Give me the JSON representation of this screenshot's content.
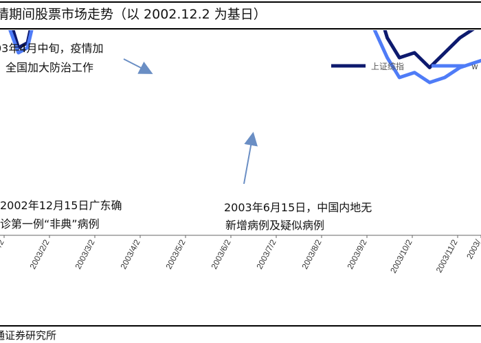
{
  "header": {
    "title": "情期间股票市场走势（以 2002.12.2 为基日）"
  },
  "footer": {
    "source": "通证券研究所"
  },
  "chart_data": {
    "type": "line",
    "title": "情期间股票市场走势（以 2002.12.2 为基日）",
    "xlabel": "",
    "ylabel": "",
    "x_ticks": [
      "/2",
      "2003/2/2",
      "2003/3/2",
      "2003/4/2",
      "2003/5/2",
      "2003/6/2",
      "2003/7/2",
      "2003/8/2",
      "2003/9/2",
      "2003/10/2",
      "2003/11/2",
      "2003/"
    ],
    "grid": false,
    "legend": "top-right",
    "series": [
      {
        "name": "上证综指",
        "color": "#0d1a6e",
        "points": [
          [
            -14,
            108
          ],
          [
            -4,
            111
          ],
          [
            6,
            109
          ],
          [
            8,
            104
          ],
          [
            14,
            98
          ],
          [
            20,
            99
          ],
          [
            30,
            113
          ],
          [
            40,
            115
          ],
          [
            50,
            116
          ],
          [
            60,
            114
          ],
          [
            72,
            115
          ],
          [
            85,
            116
          ],
          [
            92,
            112
          ],
          [
            100,
            116
          ],
          [
            106,
            115
          ],
          [
            110,
            117
          ],
          [
            114,
            115
          ],
          [
            117,
            114
          ],
          [
            120,
            112
          ],
          [
            124,
            112
          ],
          [
            128,
            111
          ],
          [
            132,
            112
          ],
          [
            136,
            115
          ],
          [
            140,
            117
          ],
          [
            143,
            116
          ],
          [
            146,
            118
          ],
          [
            149,
            119
          ],
          [
            152,
            120
          ],
          [
            155,
            119
          ],
          [
            158,
            118
          ],
          [
            161,
            121
          ],
          [
            164,
            122
          ],
          [
            166,
            121
          ],
          [
            168,
            120
          ],
          [
            172,
            119
          ],
          [
            176,
            118
          ],
          [
            180,
            116
          ],
          [
            185,
            114
          ],
          [
            190,
            111
          ],
          [
            196,
            111
          ],
          [
            205,
            106
          ],
          [
            214,
            109
          ],
          [
            221,
            111
          ],
          [
            228,
            112
          ],
          [
            234,
            113
          ],
          [
            240,
            111
          ],
          [
            246,
            109
          ],
          [
            252,
            106
          ],
          [
            258,
            100
          ],
          [
            266,
            96
          ],
          [
            276,
            97
          ],
          [
            286,
            94
          ],
          [
            296,
            97
          ],
          [
            306,
            100
          ],
          [
            316,
            102
          ],
          [
            326,
            103
          ],
          [
            336,
            103
          ],
          [
            346,
            102
          ],
          [
            356,
            101
          ],
          [
            366,
            100
          ],
          [
            376,
            99
          ],
          [
            386,
            98
          ],
          [
            396,
            97
          ],
          [
            406,
            96
          ],
          [
            416,
            94
          ],
          [
            426,
            93
          ],
          [
            436,
            93
          ],
          [
            446,
            92
          ],
          [
            456,
            90
          ],
          [
            466,
            89
          ],
          [
            476,
            88
          ],
          [
            486,
            88
          ],
          [
            496,
            87
          ],
          [
            506,
            87
          ],
          [
            516,
            86
          ],
          [
            526,
            85
          ],
          [
            536,
            84
          ],
          [
            546,
            84
          ],
          [
            556,
            82
          ],
          [
            566,
            82
          ],
          [
            576,
            81
          ],
          [
            586,
            80
          ],
          [
            596,
            80
          ],
          [
            606,
            80
          ],
          [
            616,
            80
          ],
          [
            626,
            81
          ],
          [
            636,
            79
          ],
          [
            646,
            80
          ],
          [
            656,
            79
          ],
          [
            666,
            79
          ],
          [
            676,
            78
          ],
          [
            686,
            76
          ],
          [
            696,
            77
          ],
          [
            706,
            76
          ]
        ]
      },
      {
        "name": "w",
        "color": "#4f7cf7",
        "points": [
          [
            -14,
            108
          ],
          [
            -4,
            112
          ],
          [
            6,
            109
          ],
          [
            8,
            102
          ],
          [
            14,
            97
          ],
          [
            20,
            98
          ],
          [
            30,
            111
          ],
          [
            40,
            114
          ],
          [
            50,
            115
          ],
          [
            60,
            114
          ],
          [
            72,
            114
          ],
          [
            85,
            115
          ],
          [
            92,
            111
          ],
          [
            100,
            115
          ],
          [
            106,
            114
          ],
          [
            110,
            116
          ],
          [
            114,
            115
          ],
          [
            117,
            114
          ],
          [
            120,
            112
          ],
          [
            124,
            111
          ],
          [
            128,
            111
          ],
          [
            132,
            112
          ],
          [
            136,
            114
          ],
          [
            140,
            115
          ],
          [
            143,
            114
          ],
          [
            146,
            116
          ],
          [
            149,
            118
          ],
          [
            152,
            119
          ],
          [
            155,
            118
          ],
          [
            158,
            117
          ],
          [
            161,
            118
          ],
          [
            164,
            118
          ],
          [
            166,
            117
          ],
          [
            168,
            116
          ],
          [
            172,
            116
          ],
          [
            176,
            115
          ],
          [
            180,
            113
          ],
          [
            185,
            111
          ],
          [
            190,
            108
          ],
          [
            196,
            107
          ],
          [
            205,
            103
          ],
          [
            214,
            104
          ],
          [
            221,
            105
          ],
          [
            228,
            106
          ],
          [
            234,
            107
          ],
          [
            240,
            106
          ],
          [
            246,
            104
          ],
          [
            252,
            100
          ],
          [
            258,
            96
          ],
          [
            266,
            92
          ],
          [
            276,
            93
          ],
          [
            286,
            91
          ],
          [
            296,
            92
          ],
          [
            306,
            94
          ],
          [
            316,
            95
          ],
          [
            326,
            96
          ],
          [
            336,
            96
          ],
          [
            346,
            95
          ],
          [
            356,
            94
          ],
          [
            366,
            93
          ],
          [
            376,
            92
          ],
          [
            386,
            91
          ],
          [
            396,
            89
          ],
          [
            406,
            88
          ],
          [
            416,
            86
          ],
          [
            426,
            85
          ],
          [
            436,
            84
          ],
          [
            446,
            84
          ],
          [
            456,
            82
          ],
          [
            466,
            81
          ],
          [
            476,
            80
          ],
          [
            486,
            79
          ],
          [
            496,
            79
          ],
          [
            506,
            78
          ],
          [
            516,
            78
          ],
          [
            526,
            77
          ],
          [
            536,
            76
          ],
          [
            546,
            76
          ],
          [
            556,
            75
          ],
          [
            566,
            74
          ],
          [
            576,
            73
          ],
          [
            586,
            72
          ],
          [
            596,
            71
          ],
          [
            606,
            71
          ],
          [
            616,
            70
          ],
          [
            626,
            71
          ],
          [
            636,
            69
          ],
          [
            646,
            69
          ],
          [
            656,
            68
          ],
          [
            666,
            67
          ],
          [
            676,
            66
          ],
          [
            686,
            66
          ],
          [
            696,
            64
          ],
          [
            706,
            63
          ]
        ]
      }
    ],
    "annotations": [
      {
        "lines": [
          "03年4月中旬，疫情加",
          "全国加大防治工作"
        ]
      },
      {
        "lines": [
          "2002年12月15日广东确",
          "诊第一例“非典”病例"
        ]
      },
      {
        "lines": [
          "2003年6月15日，中国内地无",
          "新增病例及疑似病例"
        ]
      }
    ]
  }
}
